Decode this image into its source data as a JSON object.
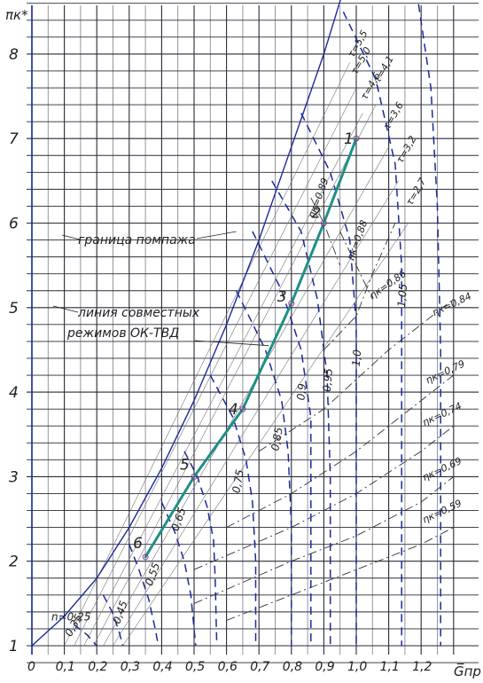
{
  "chart_data": {
    "type": "line",
    "title": "",
    "xlabel": "G̅пр",
    "ylabel": "πк*",
    "xlim": [
      0,
      1.33
    ],
    "ylim": [
      0.8,
      9.0
    ],
    "grid": true,
    "x_ticks": [
      "0",
      "0,1",
      "0,2",
      "0,3",
      "0,4",
      "0,5",
      "0,6",
      "0,7",
      "0,8",
      "0,9",
      "1,0",
      "1,1",
      "1,2"
    ],
    "y_ticks": [
      "1",
      "2",
      "3",
      "4",
      "5",
      "6",
      "7",
      "8"
    ],
    "surge_line": {
      "label": "граница помпажа",
      "points": [
        [
          0.0,
          1.0
        ],
        [
          0.1,
          1.35
        ],
        [
          0.2,
          1.8
        ],
        [
          0.3,
          2.4
        ],
        [
          0.4,
          3.1
        ],
        [
          0.5,
          3.9
        ],
        [
          0.6,
          4.8
        ],
        [
          0.7,
          5.8
        ],
        [
          0.8,
          6.9
        ],
        [
          0.9,
          8.0
        ],
        [
          0.98,
          9.0
        ]
      ]
    },
    "speed_lines": [
      {
        "label": "n=0,25",
        "points": [
          [
            0.13,
            1.25
          ],
          [
            0.17,
            1.13
          ],
          [
            0.2,
            1.0
          ]
        ]
      },
      {
        "label": "0,35",
        "points": [
          [
            0.22,
            1.6
          ],
          [
            0.25,
            1.38
          ],
          [
            0.27,
            1.15
          ],
          [
            0.28,
            1.0
          ]
        ]
      },
      {
        "label": "0,45",
        "points": [
          [
            0.3,
            2.2
          ],
          [
            0.33,
            1.9
          ],
          [
            0.36,
            1.55
          ],
          [
            0.38,
            1.2
          ],
          [
            0.39,
            1.0
          ]
        ]
      },
      {
        "label": "0,55",
        "points": [
          [
            0.4,
            2.7
          ],
          [
            0.44,
            2.35
          ],
          [
            0.47,
            2.0
          ],
          [
            0.49,
            1.6
          ],
          [
            0.5,
            1.2
          ],
          [
            0.505,
            1.0
          ]
        ]
      },
      {
        "label": "0,65",
        "points": [
          [
            0.47,
            3.3
          ],
          [
            0.51,
            3.0
          ],
          [
            0.54,
            2.65
          ],
          [
            0.56,
            2.25
          ],
          [
            0.565,
            1.8
          ],
          [
            0.57,
            1.0
          ]
        ]
      },
      {
        "label": "0,75",
        "points": [
          [
            0.55,
            4.2
          ],
          [
            0.62,
            3.7
          ],
          [
            0.66,
            3.2
          ],
          [
            0.68,
            2.7
          ],
          [
            0.69,
            2.0
          ],
          [
            0.69,
            1.0
          ]
        ]
      },
      {
        "label": "0,85",
        "points": [
          [
            0.63,
            5.2
          ],
          [
            0.72,
            4.5
          ],
          [
            0.77,
            3.9
          ],
          [
            0.79,
            3.3
          ],
          [
            0.8,
            2.4
          ],
          [
            0.8,
            1.0
          ]
        ]
      },
      {
        "label": "0,9",
        "points": [
          [
            0.68,
            5.9
          ],
          [
            0.77,
            5.2
          ],
          [
            0.83,
            4.5
          ],
          [
            0.86,
            3.7
          ],
          [
            0.86,
            2.6
          ],
          [
            0.86,
            1.0
          ]
        ]
      },
      {
        "label": "0,95",
        "points": [
          [
            0.74,
            6.5
          ],
          [
            0.83,
            5.9
          ],
          [
            0.88,
            5.1
          ],
          [
            0.91,
            4.2
          ],
          [
            0.92,
            3.0
          ],
          [
            0.92,
            1.0
          ]
        ]
      },
      {
        "label": "1,0",
        "points": [
          [
            0.83,
            7.3
          ],
          [
            0.92,
            6.6
          ],
          [
            0.98,
            5.8
          ],
          [
            1.0,
            4.8
          ],
          [
            1.0,
            3.5
          ],
          [
            1.0,
            1.0
          ]
        ]
      },
      {
        "label": "1,05",
        "points": [
          [
            0.96,
            8.5
          ],
          [
            1.06,
            7.7
          ],
          [
            1.12,
            6.7
          ],
          [
            1.14,
            5.5
          ],
          [
            1.14,
            3.5
          ],
          [
            1.14,
            1.0
          ]
        ]
      },
      {
        "label": "",
        "points": [
          [
            1.18,
            8.9
          ],
          [
            1.23,
            7.6
          ],
          [
            1.25,
            6.2
          ],
          [
            1.26,
            4.5
          ],
          [
            1.26,
            1.0
          ]
        ]
      }
    ],
    "speed_line_labels": [
      "n=0,25",
      "0,35",
      "0,45",
      "0,55",
      "0,65",
      "0,75",
      "0,85",
      "0,9",
      "0,95",
      "1,0",
      "1,05"
    ],
    "efficiency_lines": [
      {
        "label": "ηк=0,89",
        "points": [
          [
            0.86,
            6.3
          ],
          [
            0.9,
            6.0
          ],
          [
            0.95,
            5.5
          ]
        ]
      },
      {
        "label": "ηк=0,88",
        "points": [
          [
            0.95,
            5.9
          ],
          [
            1.0,
            5.5
          ],
          [
            1.05,
            5.1
          ]
        ]
      },
      {
        "label": "ηк=0,86",
        "points": [
          [
            0.9,
            4.5
          ],
          [
            1.0,
            4.9
          ],
          [
            1.05,
            5.4
          ],
          [
            1.12,
            6.0
          ]
        ]
      },
      {
        "label": "ηк=0,84",
        "points": [
          [
            0.7,
            3.3
          ],
          [
            0.9,
            3.8
          ],
          [
            1.1,
            4.5
          ],
          [
            1.3,
            5.1
          ]
        ]
      },
      {
        "label": "ηк=0,79",
        "points": [
          [
            0.6,
            2.4
          ],
          [
            0.8,
            2.8
          ],
          [
            1.0,
            3.3
          ],
          [
            1.2,
            3.9
          ],
          [
            1.3,
            4.2
          ]
        ]
      },
      {
        "label": "ηк=0,74",
        "points": [
          [
            0.5,
            1.9
          ],
          [
            0.8,
            2.4
          ],
          [
            1.0,
            2.8
          ],
          [
            1.2,
            3.3
          ],
          [
            1.3,
            3.6
          ]
        ]
      },
      {
        "label": "ηк=0,69",
        "points": [
          [
            0.5,
            1.5
          ],
          [
            0.8,
            2.0
          ],
          [
            1.0,
            2.3
          ],
          [
            1.2,
            2.7
          ],
          [
            1.3,
            3.0
          ]
        ]
      },
      {
        "label": "ηк=0,59",
        "points": [
          [
            0.6,
            1.3
          ],
          [
            0.8,
            1.6
          ],
          [
            1.0,
            1.9
          ],
          [
            1.2,
            2.2
          ],
          [
            1.3,
            2.4
          ]
        ]
      }
    ],
    "tau_lines": [
      {
        "label": "τ=5,5",
        "points": [
          [
            0.1,
            1.0
          ],
          [
            0.98,
            7.9
          ]
        ]
      },
      {
        "label": "τ=5,0",
        "points": [
          [
            0.13,
            1.0
          ],
          [
            1.0,
            7.6
          ]
        ]
      },
      {
        "label": "τ=4,6",
        "points": [
          [
            0.16,
            1.0
          ],
          [
            1.02,
            7.3
          ]
        ]
      },
      {
        "label": "τ=4,1",
        "points": [
          [
            0.19,
            1.0
          ],
          [
            1.06,
            7.4
          ]
        ]
      },
      {
        "label": "τ=3,6",
        "points": [
          [
            0.22,
            1.0
          ],
          [
            1.1,
            6.9
          ]
        ]
      },
      {
        "label": "τ=3,2",
        "points": [
          [
            0.25,
            1.0
          ],
          [
            1.13,
            6.5
          ]
        ]
      },
      {
        "label": "τ=2,7",
        "points": [
          [
            0.28,
            1.0
          ],
          [
            1.16,
            6.0
          ]
        ]
      }
    ],
    "operating_line": {
      "label": "линия совместных режимов ОК-ТВД",
      "points": [
        {
          "name": "1",
          "x": 1.0,
          "y": 7.0
        },
        {
          "name": "2",
          "x": 0.9,
          "y": 6.0
        },
        {
          "name": "3",
          "x": 0.8,
          "y": 5.05
        },
        {
          "name": "4",
          "x": 0.65,
          "y": 3.8
        },
        {
          "name": "5",
          "x": 0.5,
          "y": 3.0
        },
        {
          "name": "6",
          "x": 0.35,
          "y": 2.05
        }
      ]
    },
    "annotations": [
      "граница помпажа",
      "линия совместных",
      "режимов ОК-ТВД"
    ]
  }
}
